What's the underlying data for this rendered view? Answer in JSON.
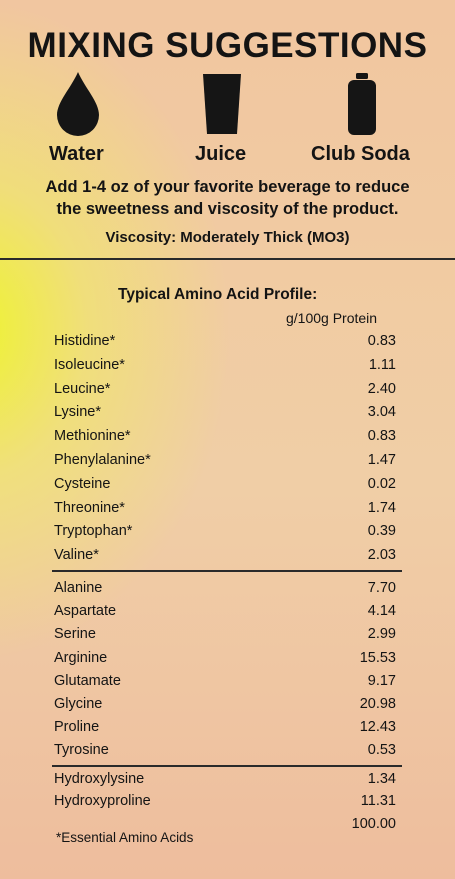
{
  "header": {
    "title": "MIXING SUGGESTIONS"
  },
  "icons": [
    {
      "icon": "water-drop-icon",
      "label": "Water"
    },
    {
      "icon": "juice-cup-icon",
      "label": "Juice"
    },
    {
      "icon": "club-soda-can-icon",
      "label": "Club Soda"
    }
  ],
  "instructions": {
    "line1": "Add 1-4 oz of your favorite beverage to reduce",
    "line2": "the sweetness and viscosity of the product.",
    "viscosity": "Viscosity: Moderately Thick (MO3)"
  },
  "profile": {
    "title": "Typical Amino Acid Profile:",
    "unit": "g/100g Protein",
    "essential": [
      {
        "name": "Histidine*",
        "value": "0.83"
      },
      {
        "name": "Isoleucine*",
        "value": "1.11"
      },
      {
        "name": "Leucine*",
        "value": "2.40"
      },
      {
        "name": "Lysine*",
        "value": "3.04"
      },
      {
        "name": "Methionine*",
        "value": "0.83"
      },
      {
        "name": "Phenylalanine*",
        "value": "1.47"
      },
      {
        "name": "Cysteine",
        "value": "0.02"
      },
      {
        "name": "Threonine*",
        "value": "1.74"
      },
      {
        "name": "Tryptophan*",
        "value": "0.39"
      },
      {
        "name": "Valine*",
        "value": "2.03"
      }
    ],
    "nonessential": [
      {
        "name": "Alanine",
        "value": "7.70"
      },
      {
        "name": "Aspartate",
        "value": "4.14"
      },
      {
        "name": "Serine",
        "value": "2.99"
      },
      {
        "name": "Arginine",
        "value": "15.53"
      },
      {
        "name": "Glutamate",
        "value": "9.17"
      },
      {
        "name": "Glycine",
        "value": "20.98"
      },
      {
        "name": "Proline",
        "value": "12.43"
      },
      {
        "name": "Tyrosine",
        "value": "0.53"
      }
    ],
    "hydroxy": [
      {
        "name": "Hydroxylysine",
        "value": "1.34"
      },
      {
        "name": "Hydroxyproline",
        "value": "11.31"
      }
    ],
    "total": "100.00",
    "footnote": "*Essential Amino Acids"
  }
}
